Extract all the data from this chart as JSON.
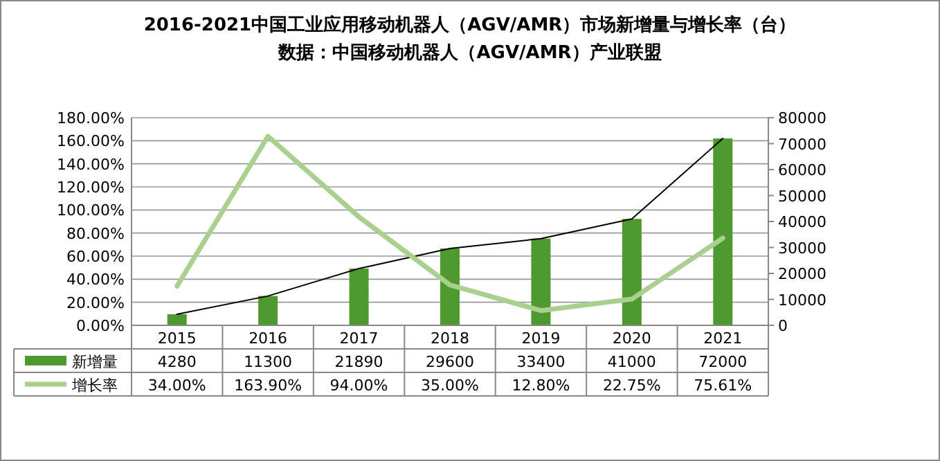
{
  "chart_data": {
    "type": "bar",
    "title": "2016-2021中国工业应用移动机器人（AGV/AMR）市场新增量与增长率（台）",
    "subtitle": "数据：中国移动机器人（AGV/AMR）产业联盟",
    "categories": [
      "2015",
      "2016",
      "2017",
      "2018",
      "2019",
      "2020",
      "2021"
    ],
    "series": [
      {
        "name": "新增量",
        "axis": "y2",
        "color": "#4e9a2e",
        "values": [
          4280,
          11300,
          21890,
          29600,
          33400,
          41000,
          72000
        ],
        "value_labels": [
          "4280",
          "11300",
          "21890",
          "29600",
          "33400",
          "41000",
          "72000"
        ]
      },
      {
        "type": "line",
        "axis": "y2",
        "color": "#000000",
        "values": [
          4280,
          11300,
          21890,
          29600,
          33400,
          41000,
          72000
        ]
      },
      {
        "name": "增长率",
        "type": "line",
        "axis": "y",
        "color": "#a9d08e",
        "values": [
          34.0,
          163.9,
          94.0,
          35.0,
          12.8,
          22.75,
          75.61
        ],
        "value_labels": [
          "34.00%",
          "163.90%",
          "94.00%",
          "35.00%",
          "12.80%",
          "22.75%",
          "75.61%"
        ]
      }
    ],
    "ylim": [
      0,
      180
    ],
    "yticks": [
      {
        "value": 0,
        "label": "0.00%"
      },
      {
        "value": 20,
        "label": "20.00%"
      },
      {
        "value": 40,
        "label": "40.00%"
      },
      {
        "value": 60,
        "label": "60.00%"
      },
      {
        "value": 80,
        "label": "80.00%"
      },
      {
        "value": 100,
        "label": "100.00%"
      },
      {
        "value": 120,
        "label": "120.00%"
      },
      {
        "value": 140,
        "label": "140.00%"
      },
      {
        "value": 160,
        "label": "160.00%"
      },
      {
        "value": 180,
        "label": "180.00%"
      }
    ],
    "y2lim": [
      0,
      80000
    ],
    "y2ticks": [
      0,
      10000,
      20000,
      30000,
      40000,
      50000,
      60000,
      70000,
      80000
    ],
    "grid": "y",
    "legend": "bottom",
    "marker": "none"
  }
}
